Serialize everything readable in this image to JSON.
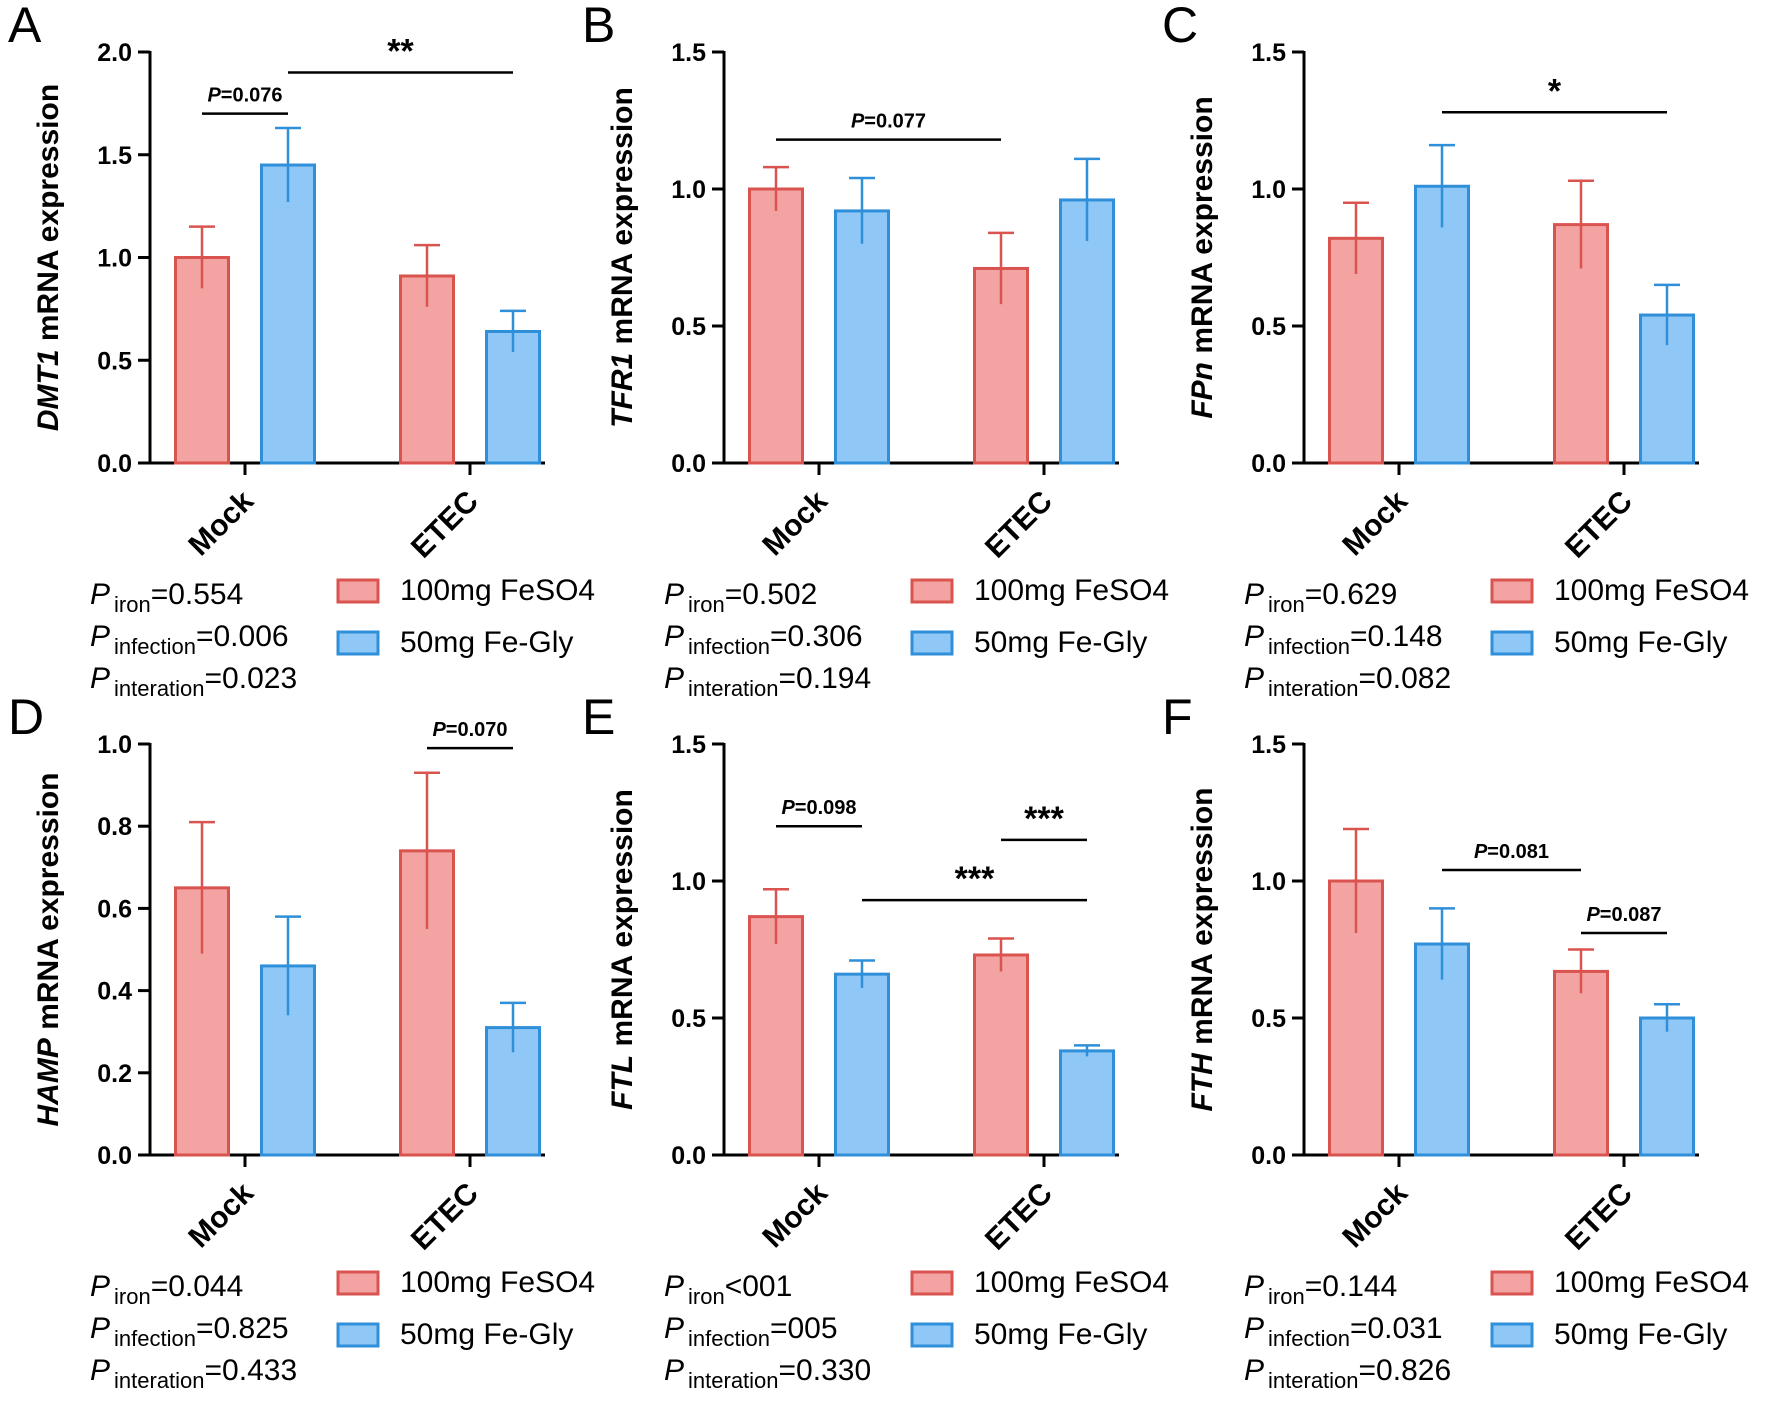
{
  "colors": {
    "fe_so4_fill": "#f4a3a3",
    "fe_so4_stroke": "#d9534f",
    "fe_gly_fill": "#8fc7f7",
    "fe_gly_stroke": "#2f8fd8",
    "axis": "#000000"
  },
  "legend": {
    "series1": "100mg FeSO4",
    "series2": "50mg Fe-Gly"
  },
  "stat_labels": {
    "p": "P",
    "iron": "iron",
    "infection": "infection",
    "interaction": "interation"
  },
  "chart_data": [
    {
      "panel": "A",
      "type": "bar",
      "gene": "DMT1",
      "ylabel_rest": " mRNA expression",
      "categories": [
        "Mock",
        "ETEC"
      ],
      "ylim": [
        0,
        2.0
      ],
      "yticks": [
        0.0,
        0.5,
        1.0,
        1.5,
        2.0
      ],
      "ytick_labels": [
        "0.0",
        "0.5",
        "1.0",
        "1.5",
        "2.0"
      ],
      "series": [
        {
          "name": "100mg FeSO4",
          "values": [
            1.0,
            0.91
          ],
          "errors": [
            0.15,
            0.15
          ]
        },
        {
          "name": "50mg Fe-Gly",
          "values": [
            1.45,
            0.64
          ],
          "errors": [
            0.18,
            0.1
          ]
        }
      ],
      "annotations": [
        {
          "from": [
            0,
            0
          ],
          "to": [
            0,
            1
          ],
          "y": 1.7,
          "text": "P=0.076",
          "kind": "p"
        },
        {
          "from": [
            0,
            1
          ],
          "to": [
            1,
            1
          ],
          "y": 1.9,
          "text": "**",
          "kind": "stars"
        }
      ],
      "stats": {
        "iron": "=0.554",
        "infection": "=0.006",
        "interaction": "=0.023"
      }
    },
    {
      "panel": "B",
      "type": "bar",
      "gene": "TFR1",
      "ylabel_rest": " mRNA expression",
      "categories": [
        "Mock",
        "ETEC"
      ],
      "ylim": [
        0,
        1.5
      ],
      "yticks": [
        0.0,
        0.5,
        1.0,
        1.5
      ],
      "ytick_labels": [
        "0.0",
        "0.5",
        "1.0",
        "1.5"
      ],
      "series": [
        {
          "name": "100mg FeSO4",
          "values": [
            1.0,
            0.71
          ],
          "errors": [
            0.08,
            0.13
          ]
        },
        {
          "name": "50mg Fe-Gly",
          "values": [
            0.92,
            0.96
          ],
          "errors": [
            0.12,
            0.15
          ]
        }
      ],
      "annotations": [
        {
          "from": [
            0,
            0
          ],
          "to": [
            1,
            0
          ],
          "y": 1.18,
          "text": "P=0.077",
          "kind": "p"
        }
      ],
      "stats": {
        "iron": "=0.502",
        "infection": "=0.306",
        "interaction": "=0.194"
      }
    },
    {
      "panel": "C",
      "type": "bar",
      "gene": "FPn",
      "ylabel_rest": " mRNA expression",
      "categories": [
        "Mock",
        "ETEC"
      ],
      "ylim": [
        0,
        1.5
      ],
      "yticks": [
        0.0,
        0.5,
        1.0,
        1.5
      ],
      "ytick_labels": [
        "0.0",
        "0.5",
        "1.0",
        "1.5"
      ],
      "series": [
        {
          "name": "100mg FeSO4",
          "values": [
            0.82,
            0.87
          ],
          "errors": [
            0.13,
            0.16
          ]
        },
        {
          "name": "50mg Fe-Gly",
          "values": [
            1.01,
            0.54
          ],
          "errors": [
            0.15,
            0.11
          ]
        }
      ],
      "annotations": [
        {
          "from": [
            0,
            1
          ],
          "to": [
            1,
            1
          ],
          "y": 1.28,
          "text": "*",
          "kind": "stars"
        }
      ],
      "stats": {
        "iron": "=0.629",
        "infection": "=0.148",
        "interaction": "=0.082"
      }
    },
    {
      "panel": "D",
      "type": "bar",
      "gene": "HAMP",
      "ylabel_rest": " mRNA expression",
      "categories": [
        "Mock",
        "ETEC"
      ],
      "ylim": [
        0,
        1.0
      ],
      "yticks": [
        0.0,
        0.2,
        0.4,
        0.6,
        0.8,
        1.0
      ],
      "ytick_labels": [
        "0.0",
        "0.2",
        "0.4",
        "0.6",
        "0.8",
        "1.0"
      ],
      "series": [
        {
          "name": "100mg FeSO4",
          "values": [
            0.65,
            0.74
          ],
          "errors": [
            0.16,
            0.19
          ]
        },
        {
          "name": "50mg Fe-Gly",
          "values": [
            0.46,
            0.31
          ],
          "errors": [
            0.12,
            0.06
          ]
        }
      ],
      "annotations": [
        {
          "from": [
            1,
            0
          ],
          "to": [
            1,
            1
          ],
          "y": 0.99,
          "text": "P=0.070",
          "kind": "p"
        }
      ],
      "stats": {
        "iron": "=0.044",
        "infection": "=0.825",
        "interaction": "=0.433"
      }
    },
    {
      "panel": "E",
      "type": "bar",
      "gene": "FTL",
      "ylabel_rest": " mRNA expression",
      "categories": [
        "Mock",
        "ETEC"
      ],
      "ylim": [
        0,
        1.5
      ],
      "yticks": [
        0.0,
        0.5,
        1.0,
        1.5
      ],
      "ytick_labels": [
        "0.0",
        "0.5",
        "1.0",
        "1.5"
      ],
      "series": [
        {
          "name": "100mg FeSO4",
          "values": [
            0.87,
            0.73
          ],
          "errors": [
            0.1,
            0.06
          ]
        },
        {
          "name": "50mg Fe-Gly",
          "values": [
            0.66,
            0.38
          ],
          "errors": [
            0.05,
            0.02
          ]
        }
      ],
      "annotations": [
        {
          "from": [
            0,
            0
          ],
          "to": [
            0,
            1
          ],
          "y": 1.2,
          "text": "P=0.098",
          "kind": "p"
        },
        {
          "from": [
            1,
            0
          ],
          "to": [
            1,
            1
          ],
          "y": 1.15,
          "text": "***",
          "kind": "stars"
        },
        {
          "from": [
            0,
            1
          ],
          "to": [
            1,
            1
          ],
          "y": 0.93,
          "text": "***",
          "kind": "stars"
        }
      ],
      "stats": {
        "iron": "<001",
        "infection": "=005",
        "interaction": "=0.330"
      }
    },
    {
      "panel": "F",
      "type": "bar",
      "gene": "FTH",
      "ylabel_rest": " mRNA expression",
      "categories": [
        "Mock",
        "ETEC"
      ],
      "ylim": [
        0,
        1.5
      ],
      "yticks": [
        0.0,
        0.5,
        1.0,
        1.5
      ],
      "ytick_labels": [
        "0.0",
        "0.5",
        "1.0",
        "1.5"
      ],
      "series": [
        {
          "name": "100mg FeSO4",
          "values": [
            1.0,
            0.67
          ],
          "errors": [
            0.19,
            0.08
          ]
        },
        {
          "name": "50mg Fe-Gly",
          "values": [
            0.77,
            0.5
          ],
          "errors": [
            0.13,
            0.05
          ]
        }
      ],
      "annotations": [
        {
          "from": [
            0,
            1
          ],
          "to": [
            1,
            0
          ],
          "y": 1.04,
          "text": "P=0.081",
          "kind": "p"
        },
        {
          "from": [
            1,
            0
          ],
          "to": [
            1,
            1
          ],
          "y": 0.81,
          "text": "P=0.087",
          "kind": "p"
        }
      ],
      "stats": {
        "iron": "=0.144",
        "infection": "=0.031",
        "interaction": "=0.826"
      }
    }
  ]
}
